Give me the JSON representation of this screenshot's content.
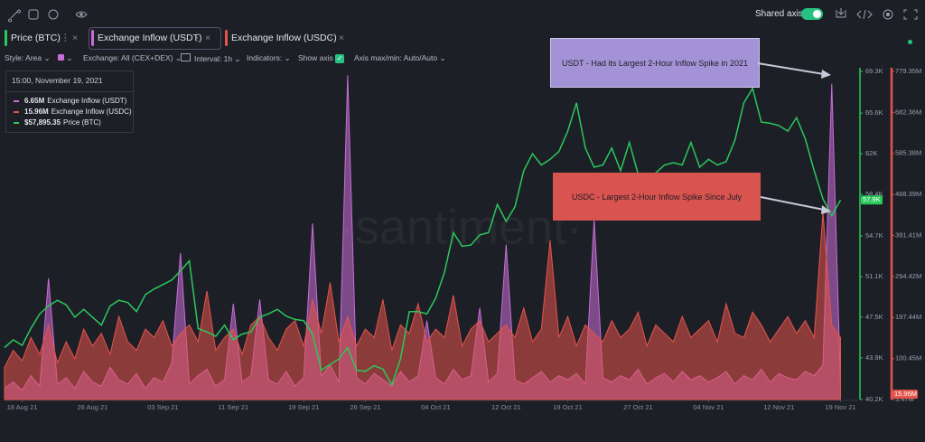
{
  "toolbar": {
    "shared_axis": "Shared axis",
    "style": "Style: Area",
    "exchange": "Exchange: All (CEX+DEX)",
    "interval": "Interval: 1h",
    "indicators": "Indicators:",
    "show_axis": "Show axis",
    "axis_minmax": "Axis max/min: Auto/Auto"
  },
  "watermark": "·santiment·",
  "chart_data": {
    "type": "line",
    "x": [
      "2021-08-16",
      "2021-08-17",
      "2021-08-18",
      "2021-08-19",
      "2021-08-20",
      "2021-08-21",
      "2021-08-22",
      "2021-08-23",
      "2021-08-24",
      "2021-08-25",
      "2021-08-26",
      "2021-08-27",
      "2021-08-28",
      "2021-08-29",
      "2021-08-30",
      "2021-08-31",
      "2021-09-01",
      "2021-09-02",
      "2021-09-03",
      "2021-09-04",
      "2021-09-05",
      "2021-09-06",
      "2021-09-07",
      "2021-09-08",
      "2021-09-09",
      "2021-09-10",
      "2021-09-11",
      "2021-09-12",
      "2021-09-13",
      "2021-09-14",
      "2021-09-15",
      "2021-09-16",
      "2021-09-17",
      "2021-09-18",
      "2021-09-19",
      "2021-09-20",
      "2021-09-21",
      "2021-09-22",
      "2021-09-23",
      "2021-09-24",
      "2021-09-25",
      "2021-09-26",
      "2021-09-27",
      "2021-09-28",
      "2021-09-29",
      "2021-09-30",
      "2021-10-01",
      "2021-10-02",
      "2021-10-03",
      "2021-10-04",
      "2021-10-05",
      "2021-10-06",
      "2021-10-07",
      "2021-10-08",
      "2021-10-09",
      "2021-10-10",
      "2021-10-11",
      "2021-10-12",
      "2021-10-13",
      "2021-10-14",
      "2021-10-15",
      "2021-10-16",
      "2021-10-17",
      "2021-10-18",
      "2021-10-19",
      "2021-10-20",
      "2021-10-21",
      "2021-10-22",
      "2021-10-23",
      "2021-10-24",
      "2021-10-25",
      "2021-10-26",
      "2021-10-27",
      "2021-10-28",
      "2021-10-29",
      "2021-10-30",
      "2021-10-31",
      "2021-11-01",
      "2021-11-02",
      "2021-11-03",
      "2021-11-04",
      "2021-11-05",
      "2021-11-06",
      "2021-11-07",
      "2021-11-08",
      "2021-11-09",
      "2021-11-10",
      "2021-11-11",
      "2021-11-12",
      "2021-11-13",
      "2021-11-14",
      "2021-11-15",
      "2021-11-16",
      "2021-11-17",
      "2021-11-18",
      "2021-11-19"
    ],
    "xlim": [
      "2021-08-16",
      "2021-11-21"
    ],
    "xticks": [
      {
        "value": "2021-08-18",
        "label": "18 Aug 21"
      },
      {
        "value": "2021-08-26",
        "label": "26 Aug 21"
      },
      {
        "value": "2021-09-03",
        "label": "03 Sep 21"
      },
      {
        "value": "2021-09-11",
        "label": "11 Sep 21"
      },
      {
        "value": "2021-09-19",
        "label": "19 Sep 21"
      },
      {
        "value": "2021-09-26",
        "label": "26 Sep 21"
      },
      {
        "value": "2021-10-04",
        "label": "04 Oct 21"
      },
      {
        "value": "2021-10-12",
        "label": "12 Oct 21"
      },
      {
        "value": "2021-10-19",
        "label": "19 Oct 21"
      },
      {
        "value": "2021-10-27",
        "label": "27 Oct 21"
      },
      {
        "value": "2021-11-04",
        "label": "04 Nov 21"
      },
      {
        "value": "2021-11-12",
        "label": "12 Nov 21"
      },
      {
        "value": "2021-11-19",
        "label": "19 Nov 21"
      }
    ],
    "ylim": [
      40200,
      69300
    ],
    "yticks": [
      {
        "value": 40200,
        "label": "40.2K"
      },
      {
        "value": 43900,
        "label": "43.9K"
      },
      {
        "value": 47500,
        "label": "47.5K"
      },
      {
        "value": 51100,
        "label": "51.1K"
      },
      {
        "value": 54700,
        "label": "54.7K"
      },
      {
        "value": 58400,
        "label": "58.4K"
      },
      {
        "value": 62000,
        "label": "62K"
      },
      {
        "value": 65600,
        "label": "65.6K"
      },
      {
        "value": 69300,
        "label": "69.3K"
      }
    ],
    "y2lim": [
      3470000,
      779350000
    ],
    "y2ticks": [
      {
        "value": 3470000,
        "label": "3.47M"
      },
      {
        "value": 100450000,
        "label": "100.45M"
      },
      {
        "value": 197440000,
        "label": "197.44M"
      },
      {
        "value": 294420000,
        "label": "294.42M"
      },
      {
        "value": 391410000,
        "label": "391.41M"
      },
      {
        "value": 488390000,
        "label": "488.39M"
      },
      {
        "value": 585380000,
        "label": "585.38M"
      },
      {
        "value": 682360000,
        "label": "682.36M"
      },
      {
        "value": 779350000,
        "label": "779.35M"
      }
    ],
    "series": [
      {
        "name": "Price (BTC)",
        "type": "line",
        "color": "#2bc85a",
        "values": [
          44800,
          45500,
          45000,
          46500,
          47800,
          48500,
          49000,
          48600,
          47500,
          48200,
          47500,
          46800,
          48500,
          49000,
          48800,
          48000,
          49500,
          50000,
          50400,
          50800,
          51600,
          52500,
          46500,
          46200,
          45800,
          46800,
          45500,
          46000,
          46200,
          47500,
          47800,
          48200,
          47600,
          47300,
          47200,
          46000,
          42800,
          43300,
          43800,
          44800,
          42800,
          42700,
          43200,
          42900,
          41500,
          43800,
          48000,
          48000,
          47800,
          49200,
          51500,
          55000,
          53800,
          53900,
          54800,
          55000,
          57500,
          56000,
          57300,
          60500,
          62000,
          61000,
          61500,
          62200,
          64000,
          66500,
          62500,
          60800,
          61000,
          62500,
          60500,
          63000,
          60200,
          58500,
          60300,
          61000,
          61200,
          61000,
          63000,
          60800,
          61500,
          61000,
          61300,
          63200,
          66500,
          67800,
          64800,
          64700,
          64500,
          64000,
          65200,
          63300,
          60500,
          58000,
          56500,
          57900
        ]
      },
      {
        "name": "Exchange Inflow (USDT)",
        "type": "area",
        "axis": "y2",
        "color": "#c86dd7",
        "values": [
          30000000,
          45000000,
          25000000,
          60000000,
          35000000,
          290000000,
          40000000,
          55000000,
          30000000,
          70000000,
          45000000,
          35000000,
          80000000,
          50000000,
          40000000,
          65000000,
          30000000,
          55000000,
          45000000,
          90000000,
          350000000,
          40000000,
          60000000,
          75000000,
          35000000,
          50000000,
          230000000,
          45000000,
          60000000,
          240000000,
          50000000,
          40000000,
          70000000,
          35000000,
          55000000,
          420000000,
          60000000,
          85000000,
          45000000,
          770000000,
          55000000,
          40000000,
          65000000,
          50000000,
          35000000,
          70000000,
          45000000,
          60000000,
          190000000,
          55000000,
          40000000,
          75000000,
          50000000,
          60000000,
          220000000,
          45000000,
          65000000,
          370000000,
          50000000,
          40000000,
          55000000,
          70000000,
          45000000,
          60000000,
          50000000,
          65000000,
          40000000,
          430000000,
          55000000,
          45000000,
          60000000,
          50000000,
          75000000,
          40000000,
          55000000,
          65000000,
          45000000,
          70000000,
          50000000,
          60000000,
          45000000,
          55000000,
          70000000,
          40000000,
          60000000,
          50000000,
          75000000,
          45000000,
          65000000,
          55000000,
          50000000,
          70000000,
          60000000,
          85000000,
          750000000,
          35000000
        ]
      },
      {
        "name": "Exchange Inflow (USDC)",
        "type": "area",
        "axis": "y2",
        "color": "#e5534b",
        "values": [
          80000000,
          120000000,
          95000000,
          150000000,
          110000000,
          180000000,
          90000000,
          140000000,
          100000000,
          170000000,
          130000000,
          160000000,
          110000000,
          200000000,
          140000000,
          120000000,
          170000000,
          150000000,
          190000000,
          130000000,
          160000000,
          180000000,
          140000000,
          260000000,
          120000000,
          150000000,
          170000000,
          110000000,
          180000000,
          200000000,
          150000000,
          120000000,
          170000000,
          190000000,
          130000000,
          240000000,
          160000000,
          280000000,
          140000000,
          200000000,
          130000000,
          170000000,
          150000000,
          240000000,
          120000000,
          180000000,
          160000000,
          230000000,
          140000000,
          170000000,
          150000000,
          250000000,
          130000000,
          170000000,
          190000000,
          140000000,
          160000000,
          180000000,
          150000000,
          220000000,
          140000000,
          170000000,
          380000000,
          150000000,
          200000000,
          130000000,
          180000000,
          160000000,
          140000000,
          190000000,
          150000000,
          170000000,
          210000000,
          130000000,
          180000000,
          160000000,
          140000000,
          200000000,
          150000000,
          170000000,
          190000000,
          140000000,
          230000000,
          160000000,
          150000000,
          210000000,
          180000000,
          140000000,
          170000000,
          200000000,
          160000000,
          190000000,
          150000000,
          445000000,
          180000000,
          150000000
        ]
      }
    ],
    "tooltip": {
      "time": "15:00, November 19, 2021",
      "items": [
        {
          "value": 6650000,
          "label": "6.65M"
        },
        {
          "value": 15960000,
          "label": "15.96M"
        },
        {
          "value": 57895.35,
          "label": "$57,895.35"
        }
      ]
    },
    "current_labels": [
      {
        "value": 57900,
        "label": "57.9K",
        "axis": "y",
        "color": "#2bc85a"
      },
      {
        "value": 15960000,
        "label": "15.96M",
        "axis": "y2",
        "color": "#e5534b"
      }
    ],
    "annotations": [
      {
        "text": "USDT - Had its Largest 2-Hour Inflow Spike in 2021",
        "color": "#a393d6"
      },
      {
        "text": "USDC - Largest 2-Hour Inflow Spike Since July",
        "color": "#d9534f"
      }
    ]
  }
}
